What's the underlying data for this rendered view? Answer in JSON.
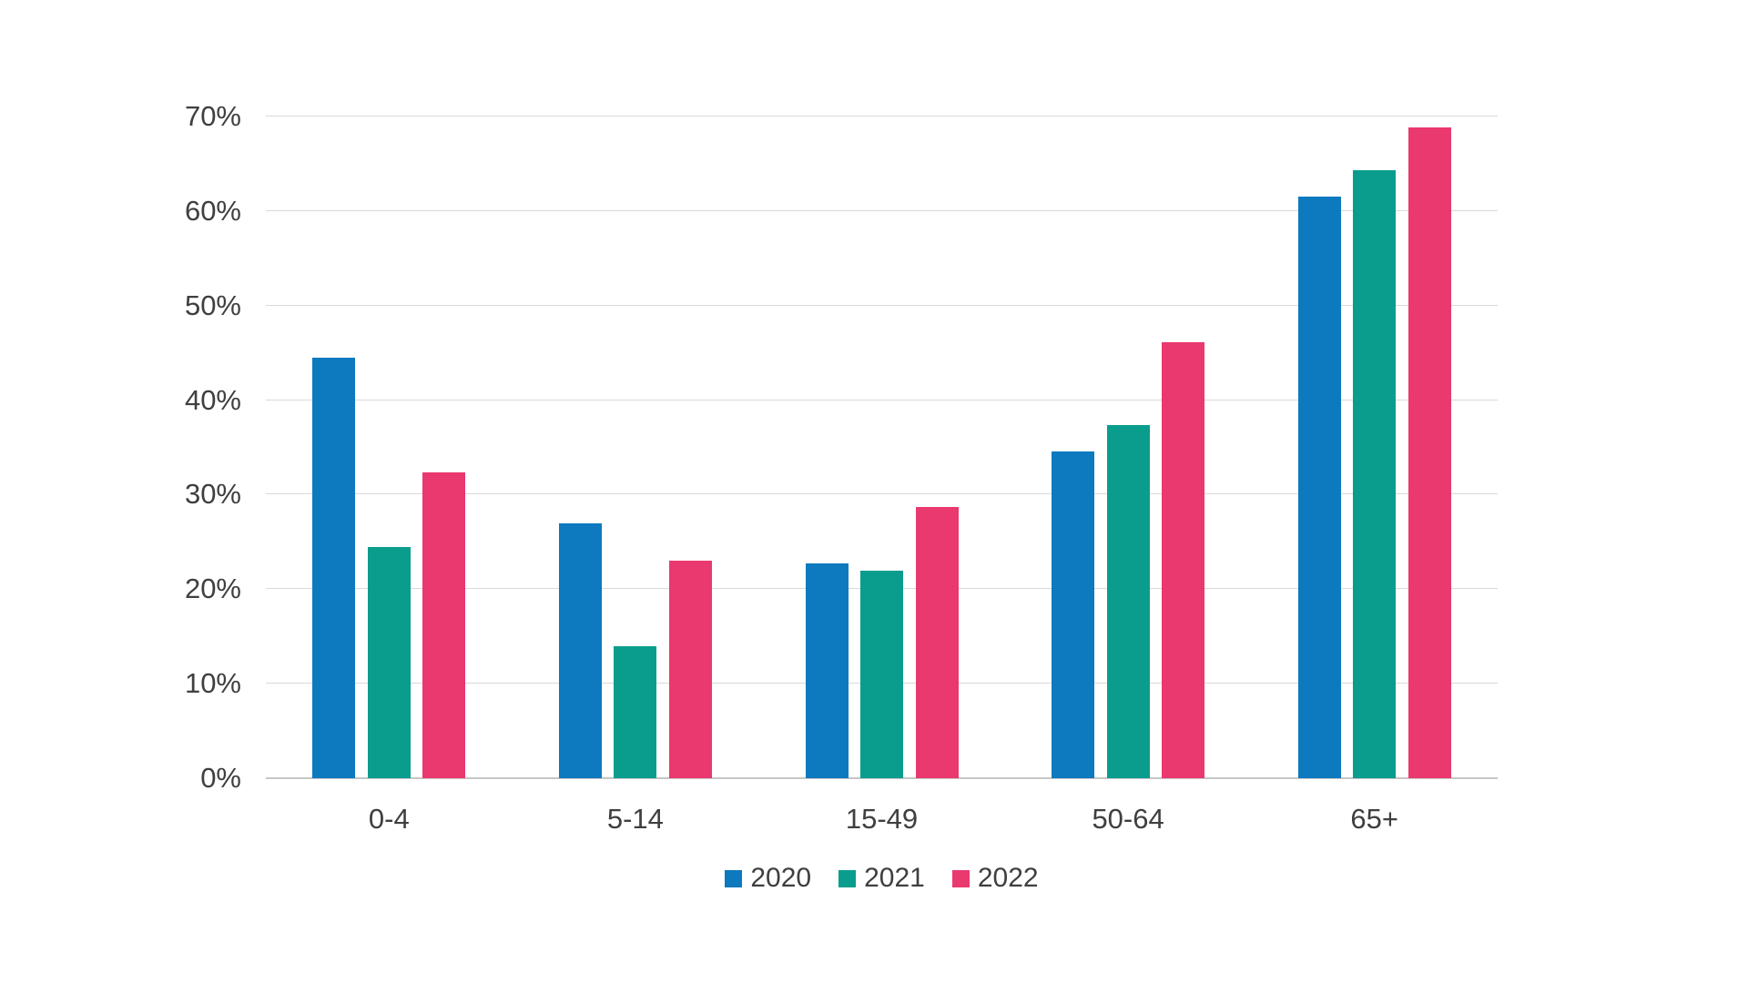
{
  "chart_data": {
    "type": "bar",
    "categories": [
      "0-4",
      "5-14",
      "15-49",
      "50-64",
      "65+"
    ],
    "series": [
      {
        "name": "2020",
        "color": "#0d79be",
        "values": [
          44.5,
          27.0,
          22.7,
          34.6,
          61.5
        ]
      },
      {
        "name": "2021",
        "color": "#0a9d8d",
        "values": [
          24.5,
          14.0,
          22.0,
          37.4,
          64.3
        ]
      },
      {
        "name": "2022",
        "color": "#ea396f",
        "values": [
          32.4,
          23.0,
          28.7,
          46.1,
          68.8
        ]
      }
    ],
    "ylim": [
      0,
      70
    ],
    "ytick_step": 10,
    "ytick_labels": [
      "0%",
      "10%",
      "20%",
      "30%",
      "40%",
      "50%",
      "60%",
      "70%"
    ],
    "grid": true,
    "legend_position": "bottom",
    "legend_labels": [
      "2020",
      "2021",
      "2022"
    ]
  },
  "colors": {
    "background": "#ffffff",
    "gridline": "#d9d9d9",
    "axis_line": "#c6c6c6",
    "tick_text": "#3f3f3f"
  }
}
